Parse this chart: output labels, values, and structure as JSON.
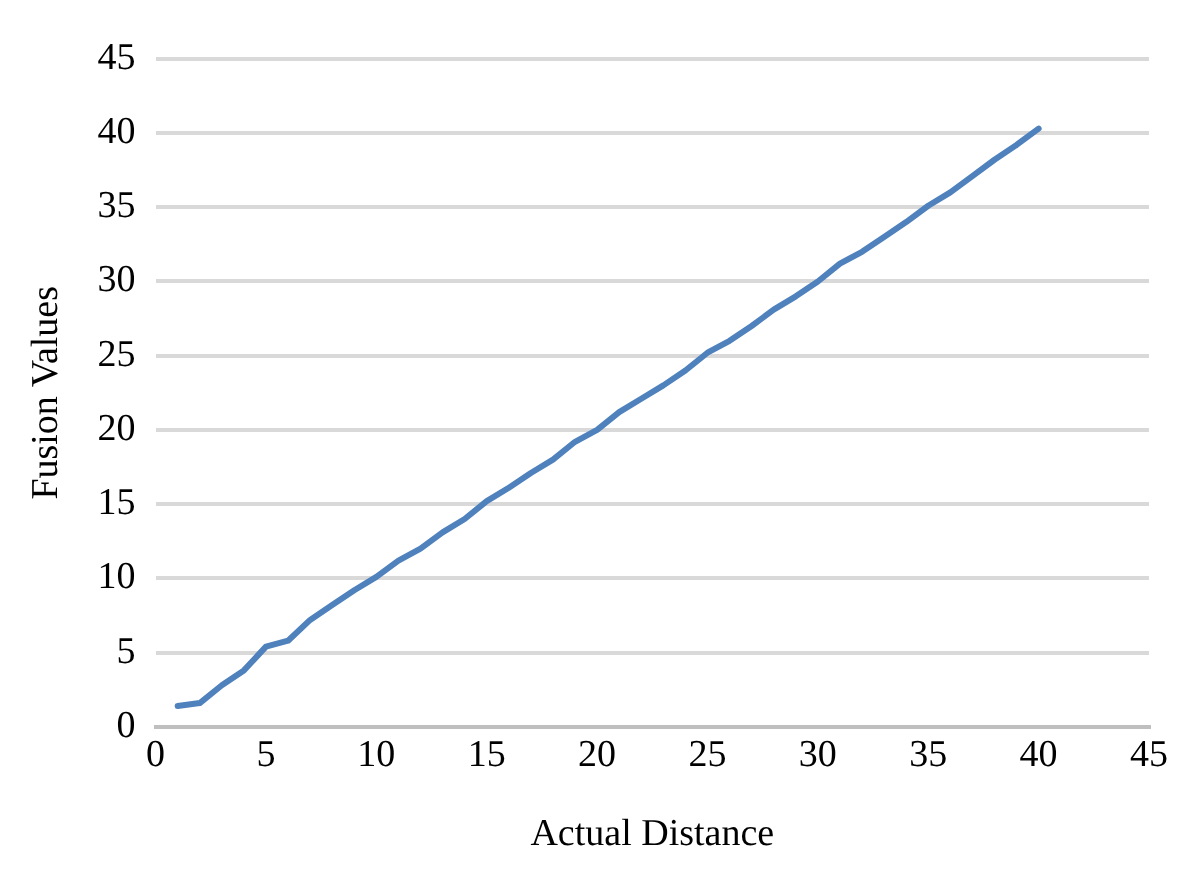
{
  "chart_data": {
    "type": "line",
    "xlabel": "Actual Distance",
    "ylabel": "Fusion Values",
    "x": [
      1,
      2,
      3,
      4,
      5,
      6,
      7,
      8,
      9,
      10,
      11,
      12,
      13,
      14,
      15,
      16,
      17,
      18,
      19,
      20,
      21,
      22,
      23,
      24,
      25,
      26,
      27,
      28,
      29,
      30,
      31,
      32,
      33,
      34,
      35,
      36,
      37,
      38,
      39,
      40
    ],
    "series": [
      {
        "color": "#4f81bd",
        "values": [
          1.4,
          1.6,
          2.8,
          3.8,
          5.4,
          5.8,
          7.2,
          8.2,
          9.2,
          10.1,
          11.2,
          12.0,
          13.1,
          14.0,
          15.2,
          16.1,
          17.1,
          18.0,
          19.2,
          20.0,
          21.2,
          22.1,
          23.0,
          24.0,
          25.2,
          26.0,
          27.0,
          28.1,
          29.0,
          30.0,
          31.2,
          32.0,
          33.0,
          34.0,
          35.1,
          36.0,
          37.1,
          38.2,
          39.2,
          40.3
        ]
      }
    ],
    "xlim": [
      0,
      45
    ],
    "xticks": [
      0,
      5,
      10,
      15,
      20,
      25,
      30,
      35,
      40,
      45
    ],
    "ylim": [
      0,
      45
    ],
    "yticks": [
      0,
      5,
      10,
      15,
      20,
      25,
      30,
      35,
      40,
      45
    ],
    "grid": "y",
    "legend": false,
    "marker": "none",
    "line_style": "solid"
  }
}
